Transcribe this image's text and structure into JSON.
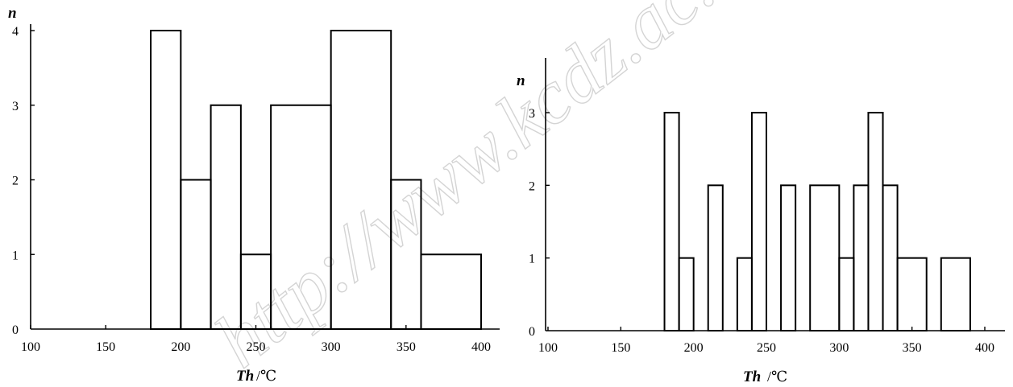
{
  "watermark": "http://www.kcdz.ac.cn/",
  "chart_data": [
    {
      "type": "histogram",
      "title": "",
      "ylabel": "n",
      "xlabel_italic": "Th",
      "xlabel_unit": "/℃",
      "xlim": [
        100,
        400
      ],
      "ylim": [
        0,
        4
      ],
      "xticks": [
        100,
        150,
        200,
        250,
        300,
        350,
        400
      ],
      "yticks": [
        0,
        1,
        2,
        3,
        4
      ],
      "bins": [
        {
          "x0": 180,
          "x1": 200,
          "count": 4
        },
        {
          "x0": 200,
          "x1": 220,
          "count": 2
        },
        {
          "x0": 220,
          "x1": 240,
          "count": 3
        },
        {
          "x0": 240,
          "x1": 260,
          "count": 1
        },
        {
          "x0": 260,
          "x1": 300,
          "count": 3
        },
        {
          "x0": 300,
          "x1": 340,
          "count": 4
        },
        {
          "x0": 340,
          "x1": 360,
          "count": 2
        },
        {
          "x0": 360,
          "x1": 400,
          "count": 1
        }
      ]
    },
    {
      "type": "histogram",
      "title": "",
      "ylabel": "n",
      "xlabel_italic": "Th",
      "xlabel_unit": "/℃",
      "xlim": [
        100,
        400
      ],
      "ylim": [
        0,
        3
      ],
      "xticks": [
        100,
        150,
        200,
        250,
        300,
        350,
        400
      ],
      "yticks": [
        0,
        1,
        2,
        3
      ],
      "bins": [
        {
          "x0": 180,
          "x1": 190,
          "count": 3
        },
        {
          "x0": 190,
          "x1": 200,
          "count": 1
        },
        {
          "x0": 200,
          "x1": 210,
          "count": 0
        },
        {
          "x0": 210,
          "x1": 220,
          "count": 2
        },
        {
          "x0": 220,
          "x1": 230,
          "count": 0
        },
        {
          "x0": 230,
          "x1": 240,
          "count": 1
        },
        {
          "x0": 240,
          "x1": 250,
          "count": 3
        },
        {
          "x0": 250,
          "x1": 260,
          "count": 0
        },
        {
          "x0": 260,
          "x1": 270,
          "count": 2
        },
        {
          "x0": 270,
          "x1": 280,
          "count": 0
        },
        {
          "x0": 280,
          "x1": 300,
          "count": 2
        },
        {
          "x0": 300,
          "x1": 310,
          "count": 1
        },
        {
          "x0": 310,
          "x1": 320,
          "count": 2
        },
        {
          "x0": 320,
          "x1": 330,
          "count": 3
        },
        {
          "x0": 330,
          "x1": 340,
          "count": 2
        },
        {
          "x0": 340,
          "x1": 360,
          "count": 1
        },
        {
          "x0": 360,
          "x1": 370,
          "count": 0
        },
        {
          "x0": 370,
          "x1": 390,
          "count": 1
        }
      ]
    }
  ]
}
